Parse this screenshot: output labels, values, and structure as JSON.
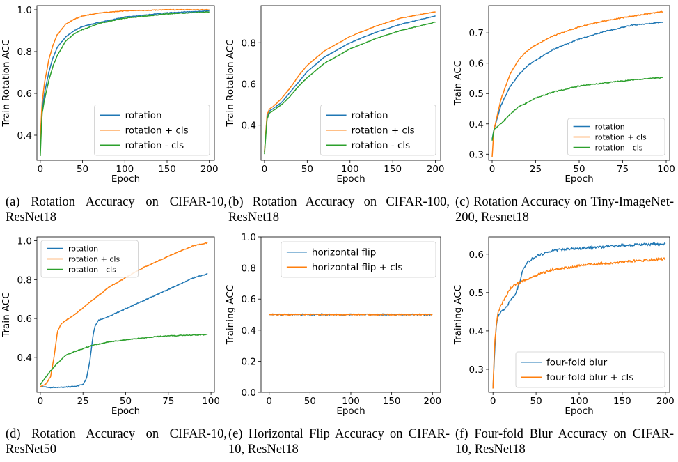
{
  "chart_data": [
    {
      "type": "line",
      "caption": "(a) Rotation Accuracy on CIFAR-10, ResNet18",
      "xlabel": "Epoch",
      "ylabel": "Train Rotation ACC",
      "xlim": [
        -4,
        206
      ],
      "ylim": [
        0.28,
        1.02
      ],
      "xticks": [
        0,
        50,
        100,
        150,
        200
      ],
      "yticks": [
        0.4,
        0.6,
        0.8,
        1.0
      ],
      "ytick_labels": [
        "0.4",
        "0.6",
        "0.8",
        "1.0"
      ],
      "legend": "bottom-right",
      "legend_small": false,
      "series": [
        {
          "name": "rotation",
          "color": "#1f77b4",
          "x": [
            0,
            2,
            5,
            10,
            15,
            20,
            30,
            40,
            50,
            70,
            100,
            150,
            200
          ],
          "y": [
            0.38,
            0.52,
            0.6,
            0.7,
            0.77,
            0.82,
            0.87,
            0.9,
            0.92,
            0.94,
            0.965,
            0.985,
            0.995
          ]
        },
        {
          "name": "rotation + cls",
          "color": "#ff7f0e",
          "x": [
            0,
            2,
            5,
            10,
            15,
            20,
            30,
            40,
            50,
            70,
            100,
            150,
            200
          ],
          "y": [
            0.38,
            0.55,
            0.65,
            0.76,
            0.83,
            0.88,
            0.93,
            0.955,
            0.97,
            0.985,
            0.995,
            1.0,
            1.0
          ]
        },
        {
          "name": "rotation - cls",
          "color": "#2ca02c",
          "x": [
            0,
            2,
            5,
            10,
            15,
            20,
            30,
            40,
            50,
            70,
            100,
            150,
            200
          ],
          "y": [
            0.3,
            0.5,
            0.57,
            0.66,
            0.73,
            0.78,
            0.85,
            0.885,
            0.905,
            0.935,
            0.96,
            0.98,
            0.99
          ]
        }
      ]
    },
    {
      "type": "line",
      "caption": "(b) Rotation Accuracy on CIFAR-100, ResNet18",
      "xlabel": "Epoch",
      "ylabel": "Train Rotation ACC",
      "xlim": [
        -4,
        206
      ],
      "ylim": [
        0.23,
        0.98
      ],
      "xticks": [
        0,
        50,
        100,
        150,
        200
      ],
      "yticks": [
        0.4,
        0.6,
        0.8
      ],
      "ytick_labels": [
        "0.4",
        "0.6",
        "0.8"
      ],
      "legend": "bottom-right",
      "legend_small": false,
      "series": [
        {
          "name": "rotation",
          "color": "#1f77b4",
          "x": [
            0,
            3,
            6,
            10,
            20,
            30,
            40,
            50,
            70,
            100,
            130,
            160,
            200
          ],
          "y": [
            0.27,
            0.44,
            0.47,
            0.48,
            0.51,
            0.56,
            0.61,
            0.66,
            0.73,
            0.8,
            0.85,
            0.89,
            0.93
          ]
        },
        {
          "name": "rotation + cls",
          "color": "#ff7f0e",
          "x": [
            0,
            3,
            6,
            10,
            20,
            30,
            40,
            50,
            70,
            100,
            130,
            160,
            200
          ],
          "y": [
            0.27,
            0.45,
            0.48,
            0.49,
            0.53,
            0.58,
            0.64,
            0.69,
            0.76,
            0.83,
            0.88,
            0.92,
            0.95
          ]
        },
        {
          "name": "rotation - cls",
          "color": "#2ca02c",
          "x": [
            0,
            3,
            6,
            10,
            20,
            30,
            40,
            50,
            70,
            100,
            130,
            160,
            200
          ],
          "y": [
            0.26,
            0.43,
            0.46,
            0.47,
            0.5,
            0.54,
            0.59,
            0.63,
            0.7,
            0.77,
            0.82,
            0.86,
            0.9
          ]
        }
      ]
    },
    {
      "type": "line",
      "caption": "(c) Rotation Accuracy on Tiny-ImageNet-200, Resnet18",
      "xlabel": "Epoch",
      "ylabel": "Train ACC",
      "xlim": [
        -2,
        102
      ],
      "ylim": [
        0.28,
        0.79
      ],
      "xticks": [
        0,
        25,
        50,
        75,
        100
      ],
      "yticks": [
        0.3,
        0.4,
        0.5,
        0.6,
        0.7
      ],
      "ytick_labels": [
        "0.3",
        "0.4",
        "0.5",
        "0.6",
        "0.7"
      ],
      "legend": "bottom-right",
      "legend_small": true,
      "series": [
        {
          "name": "rotation",
          "color": "#1f77b4",
          "x": [
            0,
            1,
            3,
            5,
            10,
            15,
            20,
            25,
            35,
            50,
            65,
            80,
            98
          ],
          "y": [
            0.35,
            0.38,
            0.42,
            0.46,
            0.52,
            0.56,
            0.59,
            0.61,
            0.645,
            0.68,
            0.705,
            0.725,
            0.735
          ]
        },
        {
          "name": "rotation + cls",
          "color": "#ff7f0e",
          "x": [
            0,
            1,
            3,
            5,
            10,
            15,
            20,
            25,
            35,
            50,
            65,
            80,
            98
          ],
          "y": [
            0.29,
            0.38,
            0.43,
            0.48,
            0.56,
            0.61,
            0.64,
            0.66,
            0.69,
            0.72,
            0.74,
            0.755,
            0.77
          ]
        },
        {
          "name": "rotation - cls",
          "color": "#2ca02c",
          "x": [
            0,
            1,
            3,
            5,
            10,
            15,
            20,
            25,
            35,
            50,
            65,
            80,
            98
          ],
          "y": [
            0.345,
            0.38,
            0.39,
            0.4,
            0.43,
            0.455,
            0.47,
            0.485,
            0.505,
            0.525,
            0.535,
            0.545,
            0.553
          ]
        }
      ]
    },
    {
      "type": "line",
      "caption": "(d) Rotation Accuracy on CIFAR-10, ResNet50",
      "xlabel": "Epoch",
      "ylabel": "Train ACC",
      "xlim": [
        -2,
        102
      ],
      "ylim": [
        0.22,
        1.02
      ],
      "xticks": [
        0,
        25,
        50,
        75,
        100
      ],
      "yticks": [
        0.4,
        0.6,
        0.8,
        1.0
      ],
      "ytick_labels": [
        "0.4",
        "0.6",
        "0.8",
        "1.0"
      ],
      "legend": "top-left",
      "legend_small": true,
      "series": [
        {
          "name": "rotation",
          "color": "#1f77b4",
          "x": [
            0,
            5,
            10,
            20,
            25,
            27,
            29,
            30,
            31,
            32,
            34,
            40,
            50,
            60,
            70,
            80,
            90,
            98
          ],
          "y": [
            0.25,
            0.245,
            0.245,
            0.25,
            0.26,
            0.29,
            0.38,
            0.45,
            0.52,
            0.56,
            0.59,
            0.61,
            0.65,
            0.69,
            0.73,
            0.77,
            0.81,
            0.83
          ]
        },
        {
          "name": "rotation + cls",
          "color": "#ff7f0e",
          "x": [
            0,
            3,
            6,
            8,
            10,
            12,
            15,
            20,
            30,
            40,
            50,
            60,
            70,
            80,
            90,
            98
          ],
          "y": [
            0.25,
            0.26,
            0.3,
            0.4,
            0.53,
            0.57,
            0.59,
            0.62,
            0.69,
            0.76,
            0.81,
            0.86,
            0.9,
            0.94,
            0.975,
            0.99
          ]
        },
        {
          "name": "rotation - cls",
          "color": "#2ca02c",
          "x": [
            0,
            5,
            10,
            15,
            20,
            30,
            40,
            50,
            60,
            70,
            80,
            90,
            98
          ],
          "y": [
            0.26,
            0.32,
            0.37,
            0.41,
            0.43,
            0.46,
            0.48,
            0.49,
            0.5,
            0.508,
            0.512,
            0.515,
            0.517
          ]
        }
      ]
    },
    {
      "type": "line",
      "caption": "(e) Horizontal Flip Accuracy on CIFAR-10, ResNet18",
      "xlabel": "Epoch",
      "ylabel": "Training ACC",
      "xlim": [
        -10,
        210
      ],
      "ylim": [
        0.0,
        1.0
      ],
      "xticks": [
        0,
        50,
        100,
        150,
        200
      ],
      "yticks": [
        0.0,
        0.2,
        0.4,
        0.6,
        0.8,
        1.0
      ],
      "ytick_labels": [
        "0.0",
        "0.2",
        "0.4",
        "0.6",
        "0.8",
        "1.0"
      ],
      "legend": "top-right",
      "legend_small": false,
      "series": [
        {
          "name": "horizontal flip",
          "color": "#1f77b4",
          "x": [
            0,
            200
          ],
          "y": [
            0.5,
            0.5
          ]
        },
        {
          "name": "horizontal flip + cls",
          "color": "#ff7f0e",
          "x": [
            0,
            200
          ],
          "y": [
            0.5,
            0.5
          ]
        }
      ]
    },
    {
      "type": "line",
      "caption": "(f) Four-fold Blur Accuracy on CIFAR-10, ResNet18",
      "xlabel": "Epoch",
      "ylabel": "Training ACC",
      "xlim": [
        -5,
        205
      ],
      "ylim": [
        0.24,
        0.645
      ],
      "xticks": [
        0,
        50,
        100,
        150,
        200
      ],
      "yticks": [
        0.3,
        0.4,
        0.5,
        0.6
      ],
      "ytick_labels": [
        "0.3",
        "0.4",
        "0.5",
        "0.6"
      ],
      "legend": "bottom-right",
      "legend_small": false,
      "series": [
        {
          "name": "four-fold blur",
          "color": "#1f77b4",
          "x": [
            0,
            2,
            4,
            6,
            10,
            15,
            20,
            25,
            30,
            35,
            40,
            50,
            70,
            100,
            150,
            200
          ],
          "y": [
            0.25,
            0.35,
            0.42,
            0.44,
            0.45,
            0.46,
            0.48,
            0.49,
            0.52,
            0.56,
            0.58,
            0.595,
            0.61,
            0.615,
            0.623,
            0.627
          ]
        },
        {
          "name": "four-fold blur + cls",
          "color": "#ff7f0e",
          "x": [
            0,
            2,
            4,
            6,
            10,
            15,
            20,
            25,
            30,
            40,
            50,
            70,
            100,
            150,
            200
          ],
          "y": [
            0.25,
            0.37,
            0.42,
            0.45,
            0.47,
            0.49,
            0.51,
            0.52,
            0.525,
            0.535,
            0.545,
            0.56,
            0.57,
            0.58,
            0.588
          ]
        }
      ]
    }
  ]
}
